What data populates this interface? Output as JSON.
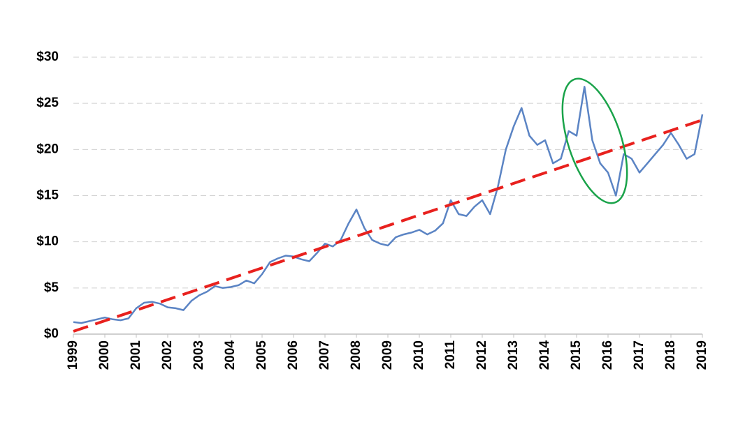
{
  "chart_data": {
    "type": "line",
    "xlim": [
      1999,
      2019
    ],
    "xticks": [
      1999,
      2000,
      2001,
      2002,
      2003,
      2004,
      2005,
      2006,
      2007,
      2008,
      2009,
      2010,
      2011,
      2012,
      2013,
      2014,
      2015,
      2016,
      2017,
      2018,
      2019
    ],
    "ylim": [
      0,
      30
    ],
    "yticks": [
      {
        "value": 0,
        "label": "$0"
      },
      {
        "value": 5,
        "label": "$5"
      },
      {
        "value": 10,
        "label": "$10"
      },
      {
        "value": 15,
        "label": "$15"
      },
      {
        "value": 20,
        "label": "$20"
      },
      {
        "value": 25,
        "label": "$25"
      },
      {
        "value": 30,
        "label": "$30"
      }
    ],
    "grid": true,
    "series": [
      {
        "color": "#5b84c4",
        "dashed": false,
        "x": [
          1999,
          1999.25,
          1999.5,
          1999.75,
          2000,
          2000.25,
          2000.5,
          2000.75,
          2001,
          2001.25,
          2001.5,
          2001.75,
          2002,
          2002.25,
          2002.5,
          2002.75,
          2003,
          2003.25,
          2003.5,
          2003.75,
          2004,
          2004.25,
          2004.5,
          2004.75,
          2005,
          2005.25,
          2005.5,
          2005.75,
          2006,
          2006.25,
          2006.5,
          2006.75,
          2007,
          2007.25,
          2007.5,
          2007.75,
          2008,
          2008.25,
          2008.5,
          2008.75,
          2009,
          2009.25,
          2009.5,
          2009.75,
          2010,
          2010.25,
          2010.5,
          2010.75,
          2011,
          2011.25,
          2011.5,
          2011.75,
          2012,
          2012.25,
          2012.5,
          2012.75,
          2013,
          2013.25,
          2013.5,
          2013.75,
          2014,
          2014.25,
          2014.5,
          2014.75,
          2015,
          2015.25,
          2015.5,
          2015.75,
          2016,
          2016.25,
          2016.5,
          2016.75,
          2017,
          2017.25,
          2017.5,
          2017.75,
          2018,
          2018.25,
          2018.5,
          2018.75,
          2019
        ],
        "values": [
          1.3,
          1.2,
          1.4,
          1.6,
          1.8,
          1.6,
          1.5,
          1.7,
          2.8,
          3.4,
          3.5,
          3.3,
          2.9,
          2.8,
          2.6,
          3.6,
          4.2,
          4.6,
          5.2,
          5.0,
          5.1,
          5.3,
          5.8,
          5.5,
          6.5,
          7.8,
          8.2,
          8.5,
          8.4,
          8.1,
          7.9,
          8.8,
          9.8,
          9.5,
          10.2,
          12.0,
          13.5,
          11.5,
          10.2,
          9.8,
          9.6,
          10.5,
          10.8,
          11.0,
          11.3,
          10.8,
          11.2,
          12.0,
          14.5,
          13.0,
          12.8,
          13.8,
          14.5,
          13.0,
          16.0,
          20.0,
          22.5,
          24.5,
          21.5,
          20.5,
          21.0,
          18.5,
          19.0,
          22.0,
          21.5,
          26.8,
          21.0,
          18.5,
          17.5,
          15.0,
          19.5,
          19.0,
          17.5,
          18.5,
          19.5,
          20.5,
          21.8,
          20.5,
          19.0,
          19.5,
          23.8
        ]
      },
      {
        "color": "#e8211e",
        "dashed": true,
        "x": [
          1999,
          2019
        ],
        "values": [
          0.3,
          23.2
        ]
      }
    ]
  }
}
